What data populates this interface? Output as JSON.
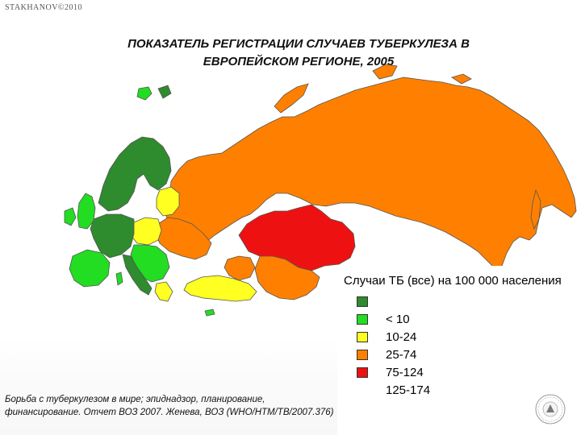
{
  "watermark": "STAKHANOV©2010",
  "title_line1": "ПОКАЗАТЕЛЬ РЕГИСТРАЦИИ СЛУЧАЕВ ТУБЕРКУЛЕЗА В",
  "title_line2": "ЕВРОПЕЙСКОМ РЕГИОНЕ, 2005",
  "legend": {
    "title": "Случаи ТБ (все) на 100 000 населения",
    "items": [
      {
        "label": "",
        "color": "#2e8b2e"
      },
      {
        "label": "< 10",
        "color": "#22dd22"
      },
      {
        "label": "10-24",
        "color": "#ffff22"
      },
      {
        "label": "25-74",
        "color": "#ff8000"
      },
      {
        "label": "75-124",
        "color": "#ee1111"
      },
      {
        "label": "125-174",
        "color": ""
      }
    ]
  },
  "source": "Борьба с туберкулезом в мире; эпиднадзор, планирование, финансирование. Отчет ВОЗ 2007. Женева, ВОЗ (WHO/HTM/TB/2007.376)",
  "colors": {
    "dark_green": "#2e8b2e",
    "green": "#22dd22",
    "yellow": "#ffff22",
    "orange": "#ff8000",
    "red": "#ee1111",
    "border": "#555555"
  }
}
